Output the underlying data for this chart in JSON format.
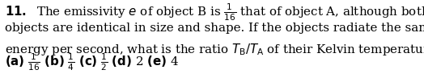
{
  "background_color": "#ffffff",
  "text_color": "#000000",
  "fontsize": 10.8,
  "line1": "$\\mathbf{11.}$  The emissivity $e$ of object B is $\\frac{1}{16}$ that of object A, although both",
  "line2": "objects are identical in size and shape. If the objects radiate the same",
  "line3": "energy per second, what is the ratio $T_{\\mathrm{B}}/T_{\\mathrm{A}}$ of their Kelvin temperatures?",
  "line4": "$\\mathbf{(a)}$ $\\frac{1}{16}$ $\\mathbf{(b)}$ $\\frac{1}{4}$ $\\mathbf{(c)}$ $\\frac{1}{2}$ $\\mathbf{(d)}$ 2 $\\mathbf{(e)}$ 4",
  "figwidth": 5.24,
  "figheight": 0.92,
  "dpi": 100
}
